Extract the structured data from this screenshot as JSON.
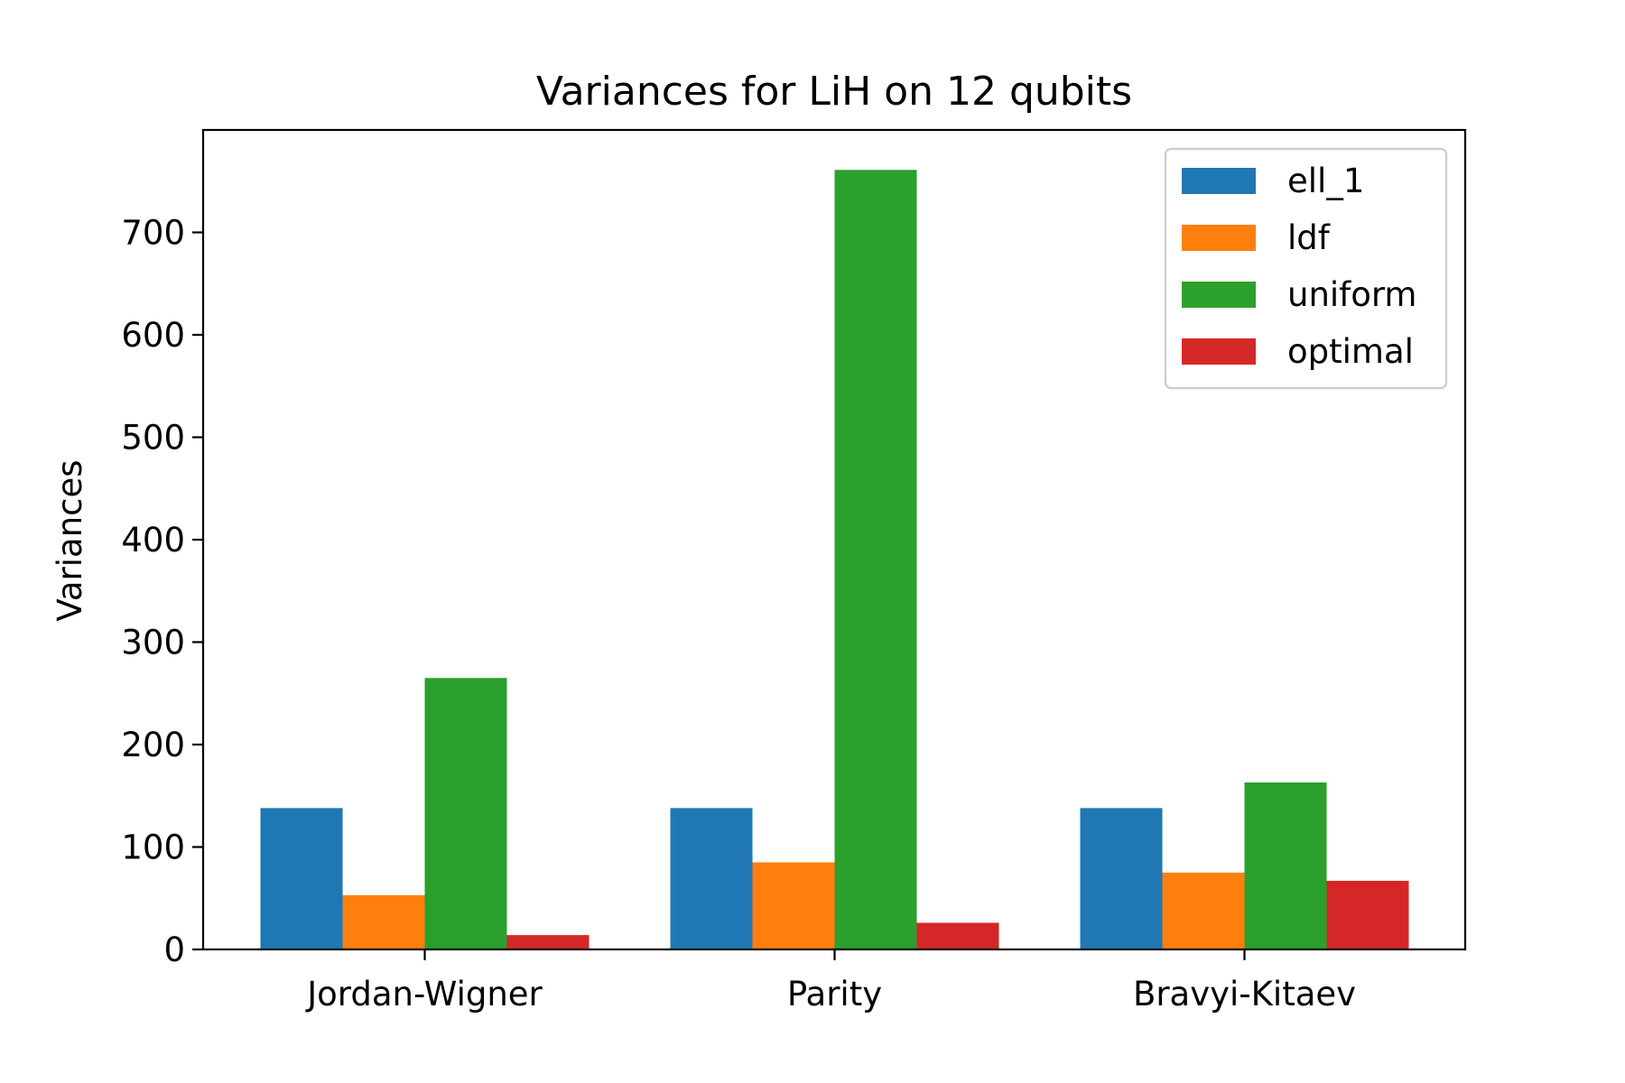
{
  "chart_data": {
    "type": "bar",
    "title": "Variances for LiH on 12 qubits",
    "xlabel": "",
    "ylabel": "Variances",
    "categories": [
      "Jordan-Wigner",
      "Parity",
      "Bravyi-Kitaev"
    ],
    "series": [
      {
        "name": "ell_1",
        "color": "#1f77b4",
        "values": [
          138,
          138,
          138
        ]
      },
      {
        "name": "ldf",
        "color": "#ff7f0e",
        "values": [
          53,
          85,
          75
        ]
      },
      {
        "name": "uniform",
        "color": "#2ca02c",
        "values": [
          265,
          761,
          163
        ]
      },
      {
        "name": "optimal",
        "color": "#d62728",
        "values": [
          14,
          26,
          67
        ]
      }
    ],
    "ylim": [
      0,
      800
    ],
    "yticks": [
      0,
      100,
      200,
      300,
      400,
      500,
      600,
      700
    ],
    "grid": false,
    "legend_position": "top-right"
  }
}
